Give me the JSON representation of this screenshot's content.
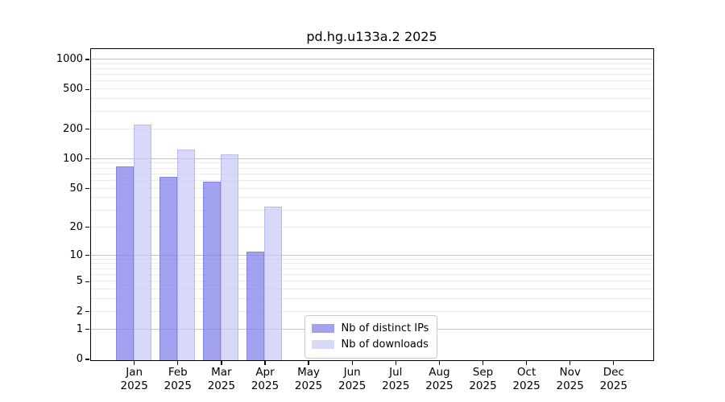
{
  "title": "pd.hg.u133a.2 2025",
  "y_axis": {
    "tick_labels": [
      "0",
      "1",
      "2",
      "5",
      "10",
      "20",
      "50",
      "100",
      "200",
      "500",
      "1000"
    ]
  },
  "x_axis": {
    "year": "2025",
    "months": [
      "Jan",
      "Feb",
      "Mar",
      "Apr",
      "May",
      "Jun",
      "Jul",
      "Aug",
      "Sep",
      "Oct",
      "Nov",
      "Dec"
    ]
  },
  "legend": {
    "items": [
      "Nb of distinct IPs",
      "Nb of downloads"
    ]
  },
  "colors": {
    "ips_fill": "rgba(126,126,235,0.72)",
    "ips_border": "rgba(95,95,215,0.45)",
    "downloads_fill": "rgba(198,198,246,0.68)",
    "downloads_border": "rgba(150,150,228,0.45)",
    "grid_major": "#c2c2c2",
    "grid_minor": "#ececec",
    "axis": "#000000"
  },
  "chart_data": {
    "type": "bar",
    "title": "pd.hg.u133a.2 2025",
    "categories": [
      "Jan",
      "Feb",
      "Mar",
      "Apr",
      "May",
      "Jun",
      "Jul",
      "Aug",
      "Sep",
      "Oct",
      "Nov",
      "Dec"
    ],
    "category_year": "2025",
    "series": [
      {
        "name": "Nb of distinct IPs",
        "color": "rgba(126,126,235,0.72)",
        "border": "rgba(95,95,215,0.45)",
        "values": [
          85,
          66,
          60,
          11,
          null,
          null,
          null,
          null,
          null,
          null,
          null,
          null
        ]
      },
      {
        "name": "Nb of downloads",
        "color": "rgba(198,198,246,0.68)",
        "border": "rgba(150,150,228,0.45)",
        "values": [
          224,
          126,
          112,
          33,
          null,
          null,
          null,
          null,
          null,
          null,
          null,
          null
        ]
      }
    ],
    "yticks": [
      0,
      1,
      2,
      5,
      10,
      20,
      50,
      100,
      200,
      500,
      1000
    ],
    "scale": "log1p",
    "ylim": [
      0,
      1271
    ],
    "grid": "on",
    "legend_position": "inside lower-center"
  }
}
